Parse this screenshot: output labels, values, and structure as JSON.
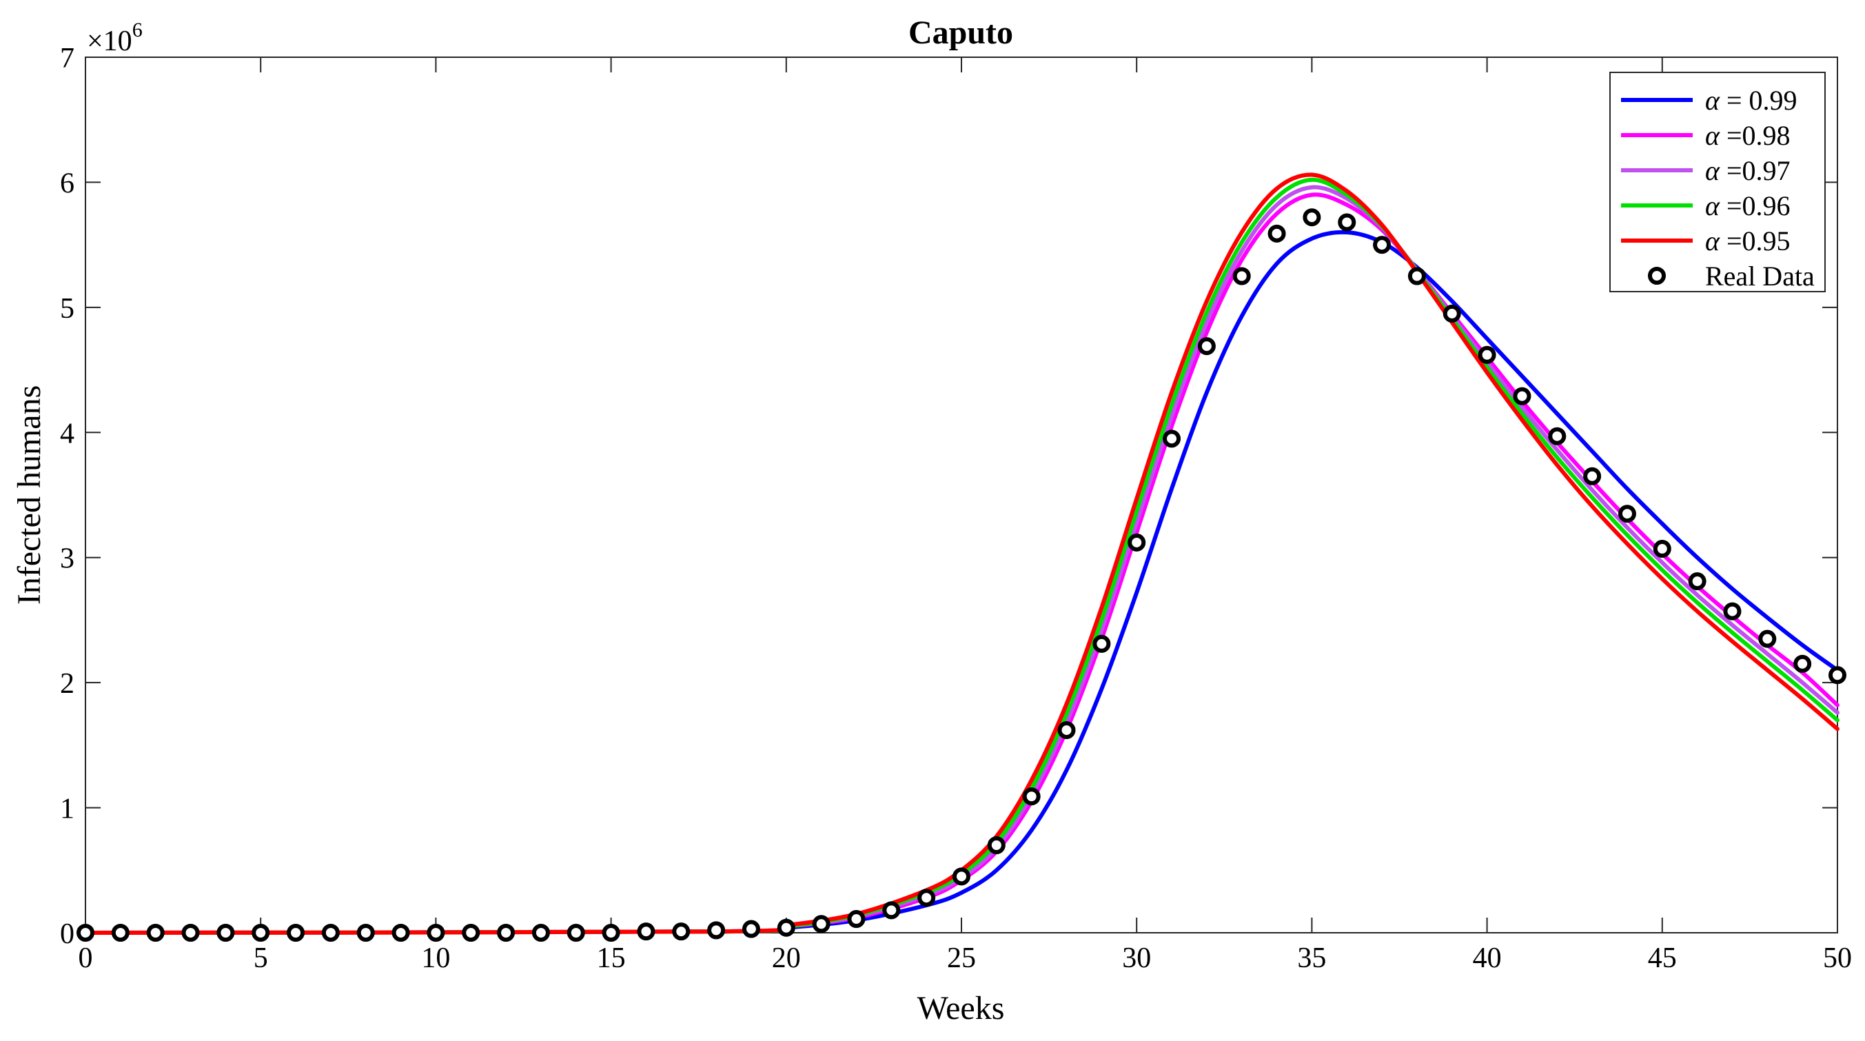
{
  "chart_data": {
    "type": "line",
    "title": "Caputo",
    "xlabel": "Weeks",
    "ylabel": "Infected humans",
    "y_exponent_label": "×10",
    "y_exponent_power": "6",
    "xlim": [
      0,
      50
    ],
    "ylim": [
      0,
      7
    ],
    "xticks": [
      0,
      5,
      10,
      15,
      20,
      25,
      30,
      35,
      40,
      45,
      50
    ],
    "yticks": [
      0,
      1,
      2,
      3,
      4,
      5,
      6,
      7
    ],
    "legend_position": "top-right",
    "series": [
      {
        "name": "α = 0.99",
        "legend_symbol": "α",
        "legend_text": " = 0.99",
        "color": "#0000ff",
        "points": [
          [
            0,
            0
          ],
          [
            18,
            0.01
          ],
          [
            20,
            0.04
          ],
          [
            22,
            0.1
          ],
          [
            24,
            0.22
          ],
          [
            25,
            0.32
          ],
          [
            26,
            0.5
          ],
          [
            27,
            0.82
          ],
          [
            28,
            1.3
          ],
          [
            29,
            1.95
          ],
          [
            30,
            2.72
          ],
          [
            31,
            3.55
          ],
          [
            32,
            4.32
          ],
          [
            33,
            4.93
          ],
          [
            34,
            5.35
          ],
          [
            35,
            5.55
          ],
          [
            36,
            5.6
          ],
          [
            37,
            5.52
          ],
          [
            38,
            5.32
          ],
          [
            39,
            5.05
          ],
          [
            40,
            4.75
          ],
          [
            41,
            4.45
          ],
          [
            42,
            4.15
          ],
          [
            43,
            3.85
          ],
          [
            44,
            3.55
          ],
          [
            45,
            3.27
          ],
          [
            46,
            3.0
          ],
          [
            47,
            2.75
          ],
          [
            48,
            2.52
          ],
          [
            49,
            2.3
          ],
          [
            50,
            2.1
          ]
        ]
      },
      {
        "name": "α =0.98",
        "legend_symbol": "α",
        "legend_text": " =0.98",
        "color": "#ff00ff",
        "points": [
          [
            0,
            0
          ],
          [
            18,
            0.01
          ],
          [
            20,
            0.05
          ],
          [
            22,
            0.12
          ],
          [
            24,
            0.28
          ],
          [
            25,
            0.42
          ],
          [
            26,
            0.65
          ],
          [
            27,
            1.05
          ],
          [
            28,
            1.62
          ],
          [
            29,
            2.35
          ],
          [
            30,
            3.2
          ],
          [
            31,
            4.05
          ],
          [
            32,
            4.8
          ],
          [
            33,
            5.38
          ],
          [
            34,
            5.75
          ],
          [
            35,
            5.9
          ],
          [
            36,
            5.82
          ],
          [
            37,
            5.62
          ],
          [
            38,
            5.3
          ],
          [
            39,
            4.95
          ],
          [
            40,
            4.6
          ],
          [
            41,
            4.25
          ],
          [
            42,
            3.92
          ],
          [
            43,
            3.61
          ],
          [
            44,
            3.31
          ],
          [
            45,
            3.03
          ],
          [
            46,
            2.77
          ],
          [
            47,
            2.53
          ],
          [
            48,
            2.3
          ],
          [
            49,
            2.08
          ],
          [
            50,
            1.82
          ]
        ]
      },
      {
        "name": "α =0.97",
        "legend_symbol": "α",
        "legend_text": " =0.97",
        "color": "#c050f0",
        "points": [
          [
            0,
            0
          ],
          [
            18,
            0.01
          ],
          [
            20,
            0.05
          ],
          [
            22,
            0.13
          ],
          [
            24,
            0.3
          ],
          [
            25,
            0.44
          ],
          [
            26,
            0.68
          ],
          [
            27,
            1.1
          ],
          [
            28,
            1.68
          ],
          [
            29,
            2.42
          ],
          [
            30,
            3.28
          ],
          [
            31,
            4.13
          ],
          [
            32,
            4.88
          ],
          [
            33,
            5.45
          ],
          [
            34,
            5.82
          ],
          [
            35,
            5.96
          ],
          [
            36,
            5.87
          ],
          [
            37,
            5.64
          ],
          [
            38,
            5.3
          ],
          [
            39,
            4.93
          ],
          [
            40,
            4.56
          ],
          [
            41,
            4.2
          ],
          [
            42,
            3.86
          ],
          [
            43,
            3.54
          ],
          [
            44,
            3.24
          ],
          [
            45,
            2.96
          ],
          [
            46,
            2.7
          ],
          [
            47,
            2.46
          ],
          [
            48,
            2.23
          ],
          [
            49,
            2.0
          ],
          [
            50,
            1.76
          ]
        ]
      },
      {
        "name": "α =0.96",
        "legend_symbol": "α",
        "legend_text": " =0.96",
        "color": "#00e000",
        "points": [
          [
            0,
            0
          ],
          [
            18,
            0.01
          ],
          [
            20,
            0.05
          ],
          [
            22,
            0.14
          ],
          [
            24,
            0.32
          ],
          [
            25,
            0.47
          ],
          [
            26,
            0.72
          ],
          [
            27,
            1.15
          ],
          [
            28,
            1.75
          ],
          [
            29,
            2.5
          ],
          [
            30,
            3.37
          ],
          [
            31,
            4.22
          ],
          [
            32,
            4.96
          ],
          [
            33,
            5.52
          ],
          [
            34,
            5.88
          ],
          [
            35,
            6.02
          ],
          [
            36,
            5.9
          ],
          [
            37,
            5.65
          ],
          [
            38,
            5.29
          ],
          [
            39,
            4.91
          ],
          [
            40,
            4.52
          ],
          [
            41,
            4.15
          ],
          [
            42,
            3.8
          ],
          [
            43,
            3.48
          ],
          [
            44,
            3.18
          ],
          [
            45,
            2.9
          ],
          [
            46,
            2.64
          ],
          [
            47,
            2.4
          ],
          [
            48,
            2.17
          ],
          [
            49,
            1.94
          ],
          [
            50,
            1.7
          ]
        ]
      },
      {
        "name": "α =0.95",
        "legend_symbol": "α",
        "legend_text": " =0.95",
        "color": "#ff0000",
        "points": [
          [
            0,
            0
          ],
          [
            18,
            0.01
          ],
          [
            20,
            0.06
          ],
          [
            22,
            0.15
          ],
          [
            24,
            0.34
          ],
          [
            25,
            0.5
          ],
          [
            26,
            0.77
          ],
          [
            27,
            1.22
          ],
          [
            28,
            1.83
          ],
          [
            29,
            2.6
          ],
          [
            30,
            3.47
          ],
          [
            31,
            4.32
          ],
          [
            32,
            5.05
          ],
          [
            33,
            5.6
          ],
          [
            34,
            5.95
          ],
          [
            35,
            6.06
          ],
          [
            36,
            5.93
          ],
          [
            37,
            5.66
          ],
          [
            38,
            5.28
          ],
          [
            39,
            4.88
          ],
          [
            40,
            4.48
          ],
          [
            41,
            4.1
          ],
          [
            42,
            3.74
          ],
          [
            43,
            3.41
          ],
          [
            44,
            3.11
          ],
          [
            45,
            2.83
          ],
          [
            46,
            2.57
          ],
          [
            47,
            2.33
          ],
          [
            48,
            2.1
          ],
          [
            49,
            1.87
          ],
          [
            50,
            1.63
          ]
        ]
      },
      {
        "name": "Real Data",
        "legend_text": "Real Data",
        "color": "#000000",
        "marker": "circle",
        "points": [
          [
            0,
            0
          ],
          [
            1,
            0
          ],
          [
            2,
            0
          ],
          [
            3,
            0
          ],
          [
            4,
            0
          ],
          [
            5,
            0
          ],
          [
            6,
            0
          ],
          [
            7,
            0
          ],
          [
            8,
            0
          ],
          [
            9,
            0
          ],
          [
            10,
            0
          ],
          [
            11,
            0
          ],
          [
            12,
            0
          ],
          [
            13,
            0
          ],
          [
            14,
            0
          ],
          [
            15,
            0
          ],
          [
            16,
            0.01
          ],
          [
            17,
            0.01
          ],
          [
            18,
            0.02
          ],
          [
            19,
            0.03
          ],
          [
            20,
            0.04
          ],
          [
            21,
            0.07
          ],
          [
            22,
            0.11
          ],
          [
            23,
            0.18
          ],
          [
            24,
            0.28
          ],
          [
            25,
            0.45
          ],
          [
            26,
            0.7
          ],
          [
            27,
            1.09
          ],
          [
            28,
            1.62
          ],
          [
            29,
            2.31
          ],
          [
            30,
            3.12
          ],
          [
            31,
            3.95
          ],
          [
            32,
            4.69
          ],
          [
            33,
            5.25
          ],
          [
            34,
            5.59
          ],
          [
            35,
            5.72
          ],
          [
            36,
            5.68
          ],
          [
            37,
            5.5
          ],
          [
            38,
            5.25
          ],
          [
            39,
            4.95
          ],
          [
            40,
            4.62
          ],
          [
            41,
            4.29
          ],
          [
            42,
            3.97
          ],
          [
            43,
            3.65
          ],
          [
            44,
            3.35
          ],
          [
            45,
            3.07
          ],
          [
            46,
            2.81
          ],
          [
            47,
            2.57
          ],
          [
            48,
            2.35
          ],
          [
            49,
            2.15
          ],
          [
            50,
            2.06
          ]
        ]
      }
    ]
  }
}
